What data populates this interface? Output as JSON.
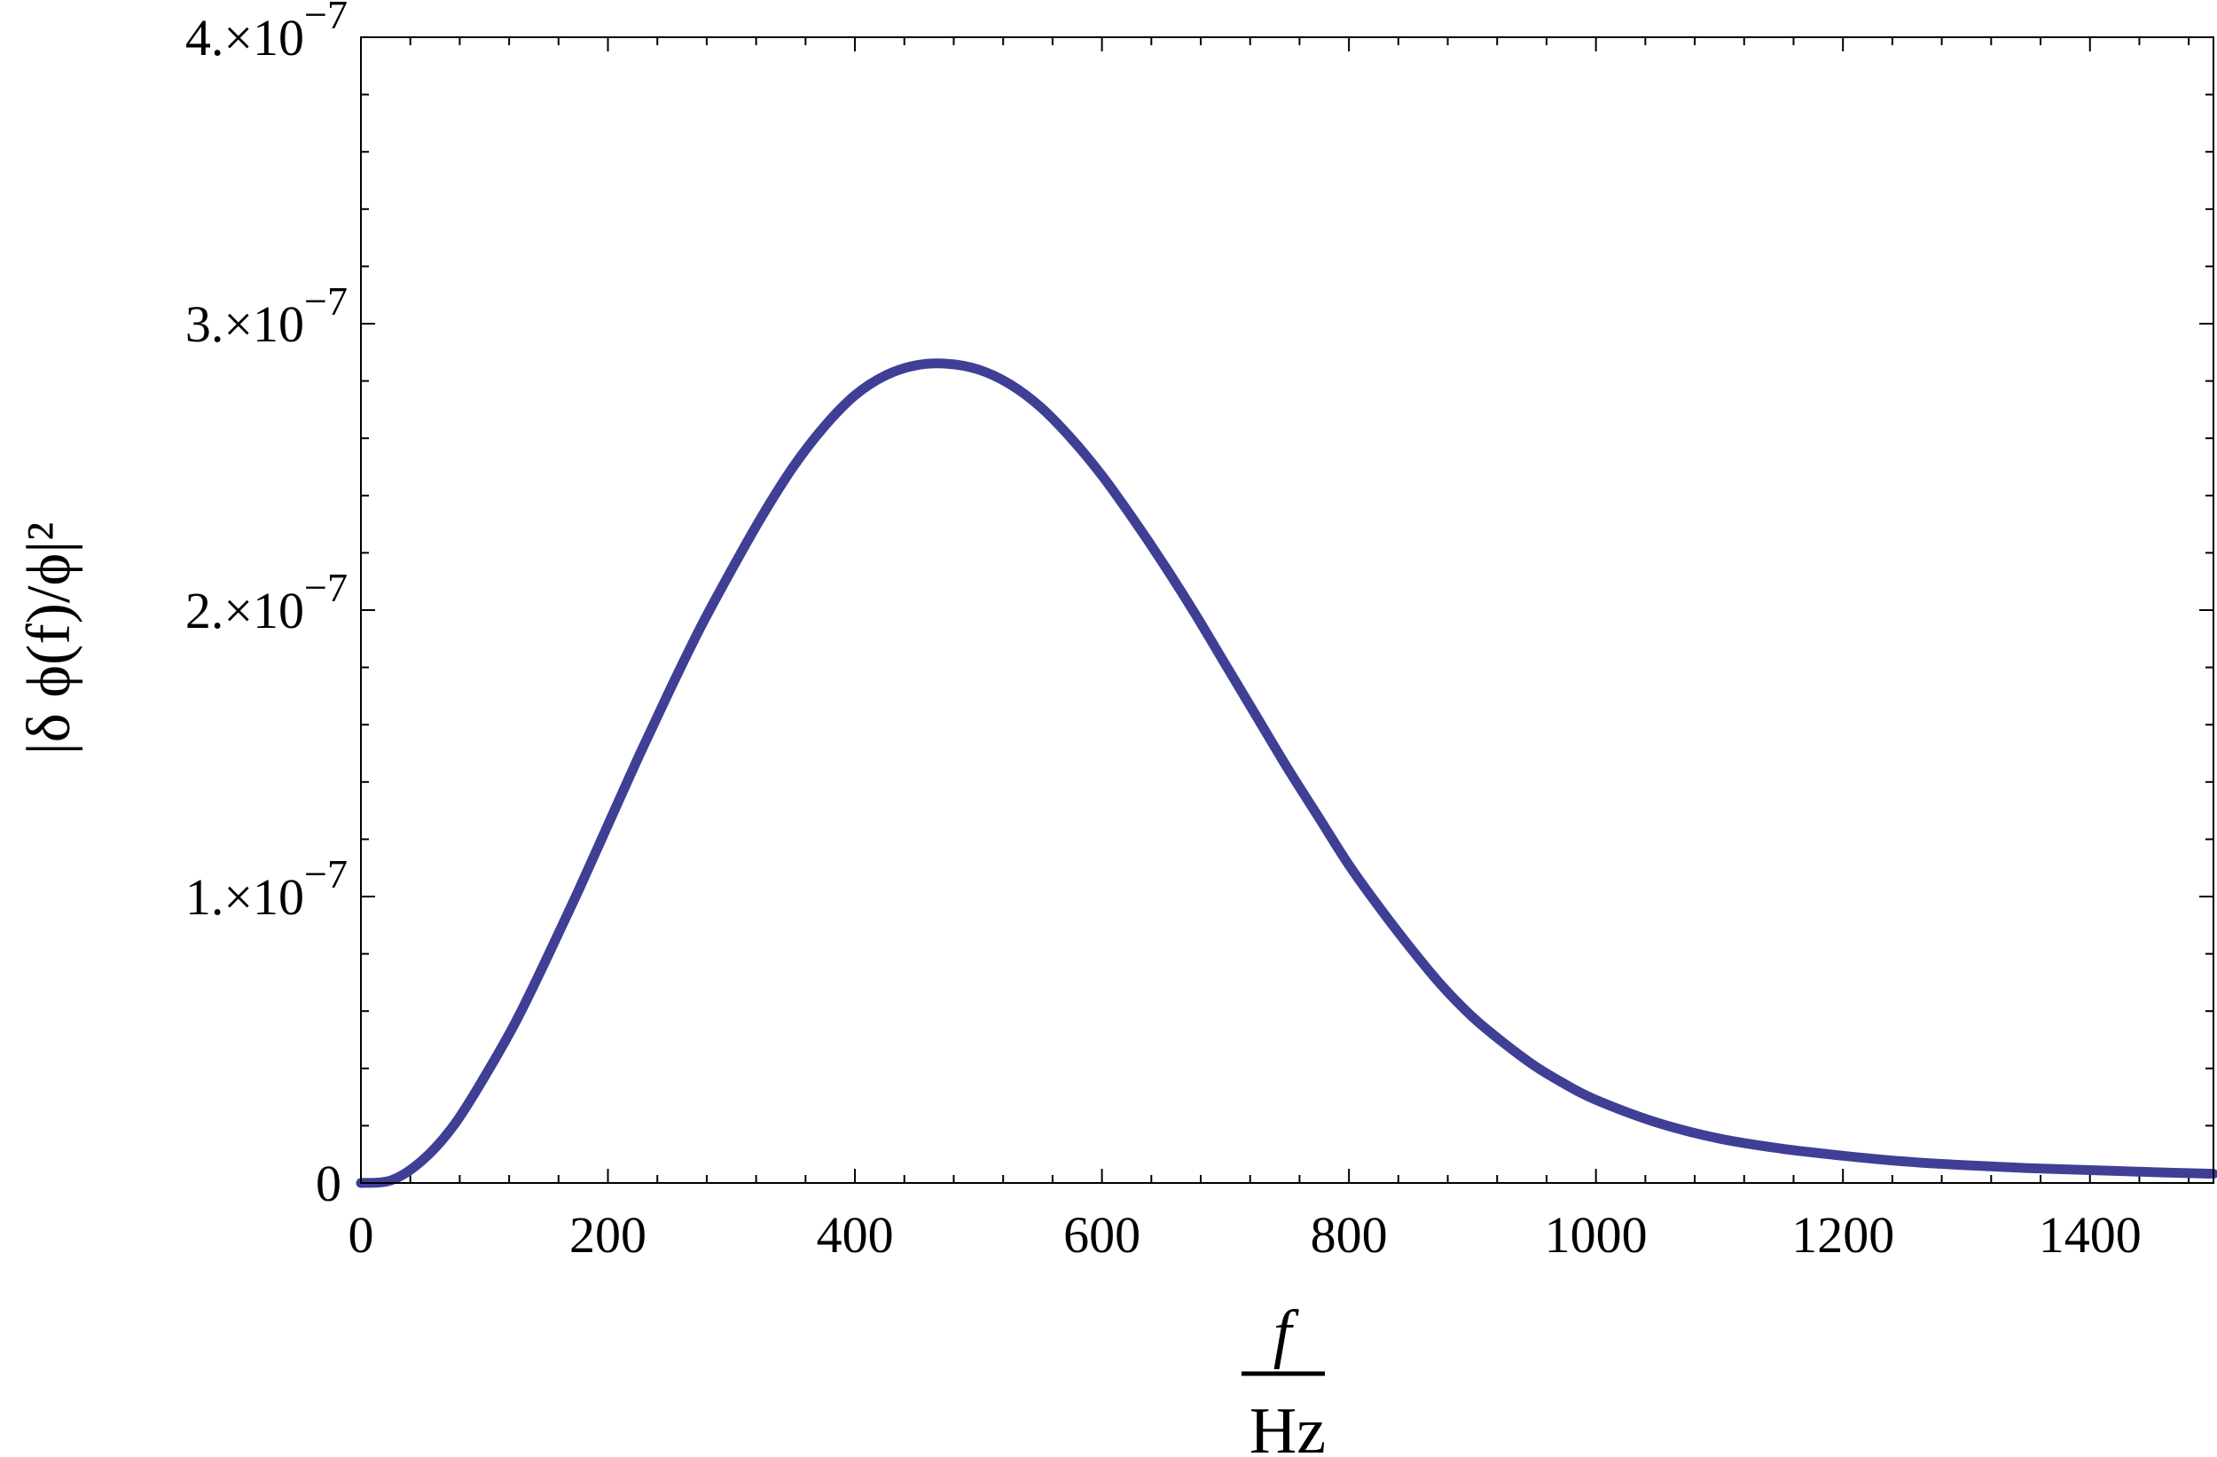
{
  "chart_data": {
    "type": "line",
    "title": "",
    "xlabel": "f",
    "xlabel_denominator": "Hz",
    "ylabel": "|δ ϕ(f)/ϕ|²",
    "xlim": [
      0,
      1500
    ],
    "ylim": [
      0,
      4e-07
    ],
    "grid": false,
    "line_color": "#3f3f96",
    "x_ticks": [
      0,
      200,
      400,
      600,
      800,
      1000,
      1200,
      1400
    ],
    "x_tick_labels": [
      "0",
      "200",
      "400",
      "600",
      "800",
      "1000",
      "1200",
      "1400"
    ],
    "y_ticks": [
      0,
      1e-07,
      2e-07,
      3e-07,
      4e-07
    ],
    "y_tick_labels": [
      {
        "mantissa": "0",
        "exponent": ""
      },
      {
        "mantissa": "1.×10",
        "exponent": "−7"
      },
      {
        "mantissa": "2.×10",
        "exponent": "−7"
      },
      {
        "mantissa": "3.×10",
        "exponent": "−7"
      },
      {
        "mantissa": "4.×10",
        "exponent": "−7"
      }
    ],
    "series": [
      {
        "x": [
          0,
          25,
          50,
          75,
          100,
          125,
          150,
          175,
          200,
          225,
          250,
          275,
          300,
          325,
          350,
          375,
          400,
          425,
          450,
          475,
          500,
          525,
          550,
          575,
          600,
          625,
          650,
          675,
          700,
          725,
          750,
          775,
          800,
          825,
          850,
          875,
          900,
          925,
          950,
          975,
          1000,
          1050,
          1100,
          1150,
          1200,
          1250,
          1300,
          1350,
          1400,
          1450,
          1500
        ],
        "y": [
          0,
          1e-09,
          8e-09,
          2e-08,
          3.7e-08,
          5.6e-08,
          7.8e-08,
          1.01e-07,
          1.25e-07,
          1.49e-07,
          1.72e-07,
          1.94e-07,
          2.14e-07,
          2.33e-07,
          2.5e-07,
          2.64e-07,
          2.75e-07,
          2.82e-07,
          2.855e-07,
          2.86e-07,
          2.84e-07,
          2.79e-07,
          2.71e-07,
          2.6e-07,
          2.47e-07,
          2.32e-07,
          2.16e-07,
          1.99e-07,
          1.81e-07,
          1.63e-07,
          1.45e-07,
          1.28e-07,
          1.11e-07,
          9.6e-08,
          8.2e-08,
          6.9e-08,
          5.8e-08,
          4.9e-08,
          4.1e-08,
          3.45e-08,
          2.9e-08,
          2.1e-08,
          1.55e-08,
          1.2e-08,
          9.5e-09,
          7.5e-09,
          6.2e-09,
          5.2e-09,
          4.5e-09,
          3.8e-09,
          3.2e-09
        ]
      }
    ]
  }
}
